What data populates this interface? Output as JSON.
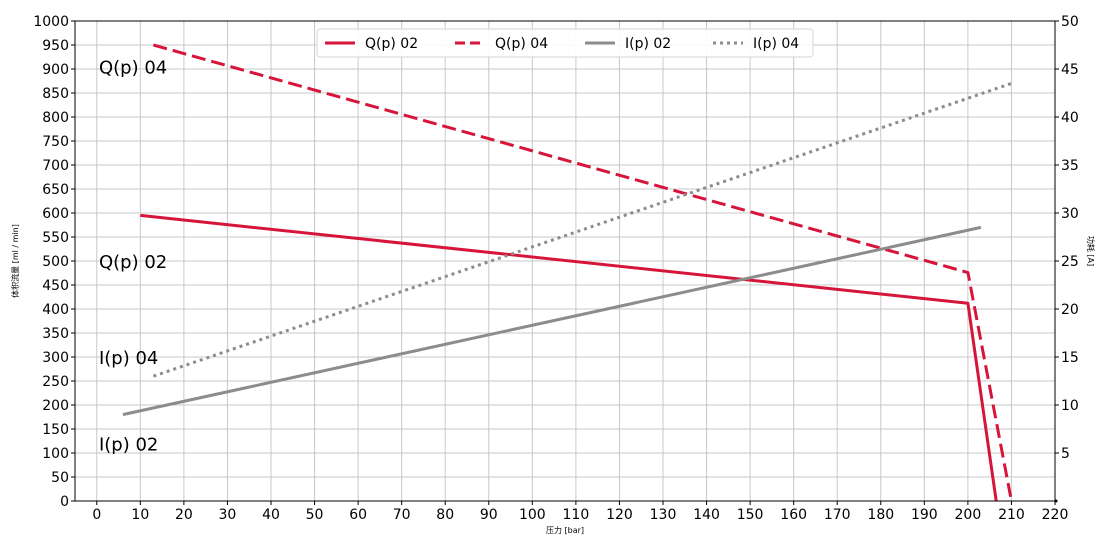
{
  "chart_data": {
    "type": "line",
    "xlabel": "压力 [bar]",
    "ylabel_left": "体积流量 [ml / min]",
    "ylabel_right": "功耗 [A]",
    "xlim": [
      -5,
      220
    ],
    "ylim_left": [
      0,
      1000
    ],
    "ylim_right": [
      0,
      50
    ],
    "grid": true,
    "legend_placement": "top-center",
    "x_ticks": [
      0,
      10,
      20,
      30,
      40,
      50,
      60,
      70,
      80,
      90,
      100,
      110,
      120,
      130,
      140,
      150,
      160,
      170,
      180,
      190,
      200,
      210,
      220
    ],
    "y_ticks_left": [
      0,
      50,
      100,
      150,
      200,
      250,
      300,
      350,
      400,
      450,
      500,
      550,
      600,
      650,
      700,
      750,
      800,
      850,
      900,
      950,
      1000
    ],
    "y_ticks_right": [
      5,
      10,
      15,
      20,
      25,
      30,
      35,
      40,
      45,
      50
    ],
    "series": [
      {
        "name": "Q(p) 02",
        "axis": "left",
        "color": "#d7153a",
        "style": "solid",
        "points": [
          [
            10,
            595
          ],
          [
            200,
            412
          ],
          [
            206.5,
            0
          ]
        ]
      },
      {
        "name": "Q(p) 04",
        "axis": "left",
        "color": "#d7153a",
        "style": "dashed",
        "points": [
          [
            13,
            950
          ],
          [
            200,
            476
          ],
          [
            210,
            0
          ]
        ]
      },
      {
        "name": "I(p) 02",
        "axis": "right",
        "color": "#8c8c8c",
        "style": "solid",
        "points": [
          [
            6,
            9.0
          ],
          [
            203,
            28.5
          ]
        ]
      },
      {
        "name": "I(p) 04",
        "axis": "right",
        "color": "#8c8c8c",
        "style": "dotted",
        "points": [
          [
            13,
            13.0
          ],
          [
            210,
            43.5
          ]
        ]
      }
    ],
    "annotations": [
      {
        "text": "Q(p) 04",
        "x": 0.5,
        "y": 905
      },
      {
        "text": "Q(p) 02",
        "x": 0.5,
        "y": 500
      },
      {
        "text": "I(p) 04",
        "x": 0.5,
        "y": 300
      },
      {
        "text": "I(p) 02",
        "x": 0.5,
        "y": 120
      }
    ]
  }
}
